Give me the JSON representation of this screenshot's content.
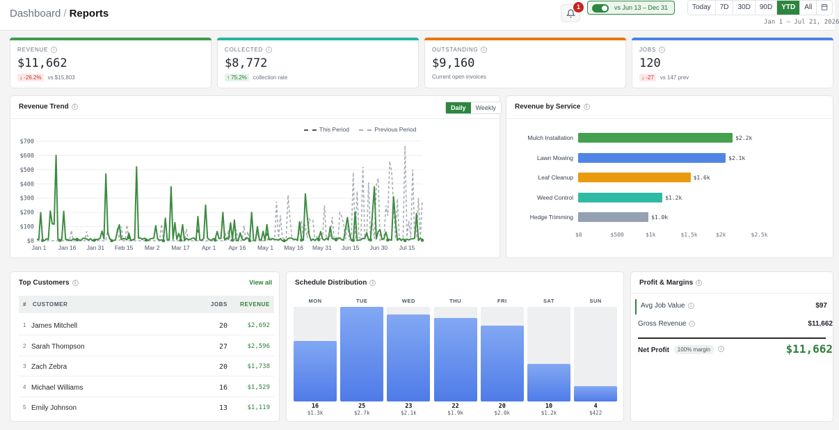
{
  "breadcrumb": {
    "parent": "Dashboard",
    "current": "Reports"
  },
  "notifications": {
    "count": "1"
  },
  "compare": {
    "label": "vs Jun 13 – Dec 31",
    "enabled": true
  },
  "ranges": [
    "Today",
    "7D",
    "30D",
    "90D",
    "YTD",
    "All"
  ],
  "active_range": "YTD",
  "date_range": "Jan 1 – Jul 21, 2026",
  "kpis": [
    {
      "label": "REVENUE",
      "value": "$11,662",
      "delta": "↓ -26.2%",
      "note": "vs $15,803",
      "color": "#3f9a4f"
    },
    {
      "label": "COLLECTED",
      "value": "$8,772",
      "delta": "↑ 75.2%",
      "note": "collection rate",
      "color": "#27b3a0"
    },
    {
      "label": "OUTSTANDING",
      "value": "$9,160",
      "delta": "",
      "note": "Current open invoices",
      "color": "#e9780e"
    },
    {
      "label": "JOBS",
      "value": "120",
      "delta": "↓ -27",
      "note": "vs 147 prev",
      "color": "#4a83e3"
    }
  ],
  "trend": {
    "title": "Revenue Trend",
    "toggle": [
      "Daily",
      "Weekly"
    ],
    "legend": [
      "This Period",
      "Previous Period"
    ],
    "y_ticks": [
      "$700",
      "$600",
      "$500",
      "$400",
      "$300",
      "$200",
      "$100",
      "$0"
    ],
    "x_ticks": [
      "Jan 1",
      "Jan 16",
      "Jan 31",
      "Feb 15",
      "Mar 2",
      "Mar 17",
      "Apr 1",
      "Apr 16",
      "May 1",
      "May 16",
      "May 31",
      "Jun 15",
      "Jun 30",
      "Jul 15"
    ]
  },
  "services": {
    "title": "Revenue by Service",
    "items": [
      {
        "name": "Mulch Installation",
        "label": "$2.2k",
        "value": 2.2,
        "color": "#45a050"
      },
      {
        "name": "Lawn Mowing",
        "label": "$2.1k",
        "value": 2.1,
        "color": "#4f86e6"
      },
      {
        "name": "Leaf Cleanup",
        "label": "$1.6k",
        "value": 1.6,
        "color": "#e99b10"
      },
      {
        "name": "Weed Control",
        "label": "$1.2k",
        "value": 1.2,
        "color": "#2fbaa4"
      },
      {
        "name": "Hedge Trimming",
        "label": "$1.0k",
        "value": 1.0,
        "color": "#93a1b3"
      }
    ],
    "ticks": [
      "$0",
      "$500",
      "$1k",
      "$1.5k",
      "$2k",
      "$2.5k"
    ]
  },
  "customers": {
    "title": "Top Customers",
    "view_all": "View all",
    "headers": {
      "num": "#",
      "customer": "CUSTOMER",
      "jobs": "JOBS",
      "revenue": "REVENUE"
    },
    "rows": [
      {
        "rank": "1",
        "name": "James Mitchell",
        "jobs": "20",
        "revenue": "$2,692"
      },
      {
        "rank": "2",
        "name": "Sarah Thompson",
        "jobs": "27",
        "revenue": "$2,596"
      },
      {
        "rank": "3",
        "name": "Zach Zebra",
        "jobs": "20",
        "revenue": "$1,738"
      },
      {
        "rank": "4",
        "name": "Michael Williams",
        "jobs": "16",
        "revenue": "$1,529"
      },
      {
        "rank": "5",
        "name": "Emily Johnson",
        "jobs": "13",
        "revenue": "$1,119"
      }
    ]
  },
  "schedule": {
    "title": "Schedule Distribution",
    "days": [
      {
        "day": "MON",
        "count": "16",
        "amount": "$1.3k",
        "level": 0.64
      },
      {
        "day": "TUE",
        "count": "25",
        "amount": "$2.7k",
        "level": 1.0
      },
      {
        "day": "WED",
        "count": "23",
        "amount": "$2.1k",
        "level": 0.92
      },
      {
        "day": "THU",
        "count": "22",
        "amount": "$1.9k",
        "level": 0.88
      },
      {
        "day": "FRI",
        "count": "20",
        "amount": "$2.0k",
        "level": 0.8
      },
      {
        "day": "SAT",
        "count": "10",
        "amount": "$1.2k",
        "level": 0.4
      },
      {
        "day": "SUN",
        "count": "4",
        "amount": "$422",
        "level": 0.16
      }
    ]
  },
  "profit": {
    "title": "Profit & Margins",
    "avg_job_label": "Avg Job Value",
    "avg_job_value": "$97",
    "gross_label": "Gross Revenue",
    "gross_value": "$11,662",
    "net_label": "Net Profit",
    "margin_badge": "100% margin",
    "net_value": "$11,662"
  }
}
